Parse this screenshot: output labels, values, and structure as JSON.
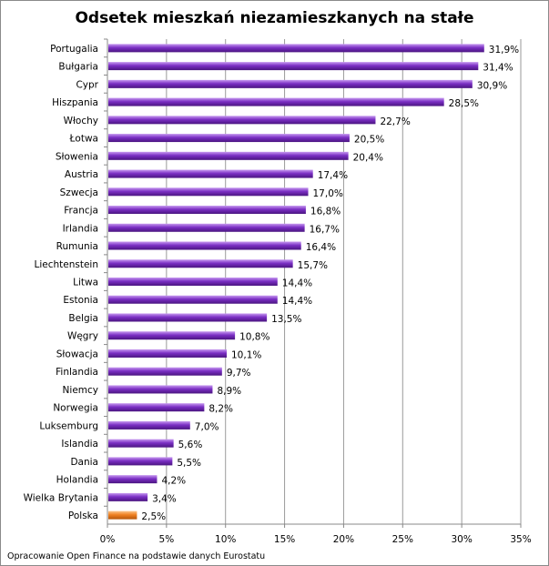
{
  "chart_data": {
    "type": "bar",
    "orientation": "horizontal",
    "title": "Odsetek mieszkań niezamieszkanych na stałe",
    "categories": [
      "Portugalia",
      "Bułgaria",
      "Cypr",
      "Hiszpania",
      "Włochy",
      "Łotwa",
      "Słowenia",
      "Austria",
      "Szwecja",
      "Francja",
      "Irlandia",
      "Rumunia",
      "Liechtenstein",
      "Litwa",
      "Estonia",
      "Belgia",
      "Węgry",
      "Słowacja",
      "Finlandia",
      "Niemcy",
      "Norwegia",
      "Luksemburg",
      "Islandia",
      "Dania",
      "Holandia",
      "Wielka Brytania",
      "Polska"
    ],
    "values": [
      31.9,
      31.4,
      30.9,
      28.5,
      22.7,
      20.5,
      20.4,
      17.4,
      17.0,
      16.8,
      16.7,
      16.4,
      15.7,
      14.4,
      14.4,
      13.5,
      10.8,
      10.1,
      9.7,
      8.9,
      8.2,
      7.0,
      5.6,
      5.5,
      4.2,
      3.4,
      2.5
    ],
    "data_labels": [
      "31,9%",
      "31,4%",
      "30,9%",
      "28,5%",
      "22,7%",
      "20,5%",
      "20,4%",
      "17,4%",
      "17,0%",
      "16,8%",
      "16,7%",
      "16,4%",
      "15,7%",
      "14,4%",
      "14,4%",
      "13,5%",
      "10,8%",
      "10,1%",
      "9,7%",
      "8,9%",
      "8,2%",
      "7,0%",
      "5,6%",
      "5,5%",
      "4,2%",
      "3,4%",
      "2,5%"
    ],
    "xlim": [
      0,
      35
    ],
    "x_ticks": [
      "0%",
      "5%",
      "10%",
      "15%",
      "20%",
      "25%",
      "30%",
      "35%"
    ],
    "grid": "vertical",
    "legend": "none",
    "colors": {
      "default": "#7b2fc4",
      "highlight": "#f08222",
      "highlight_category": "Polska"
    },
    "source_note": "Opracowanie Open Finance na podstawie danych Eurostatu"
  }
}
